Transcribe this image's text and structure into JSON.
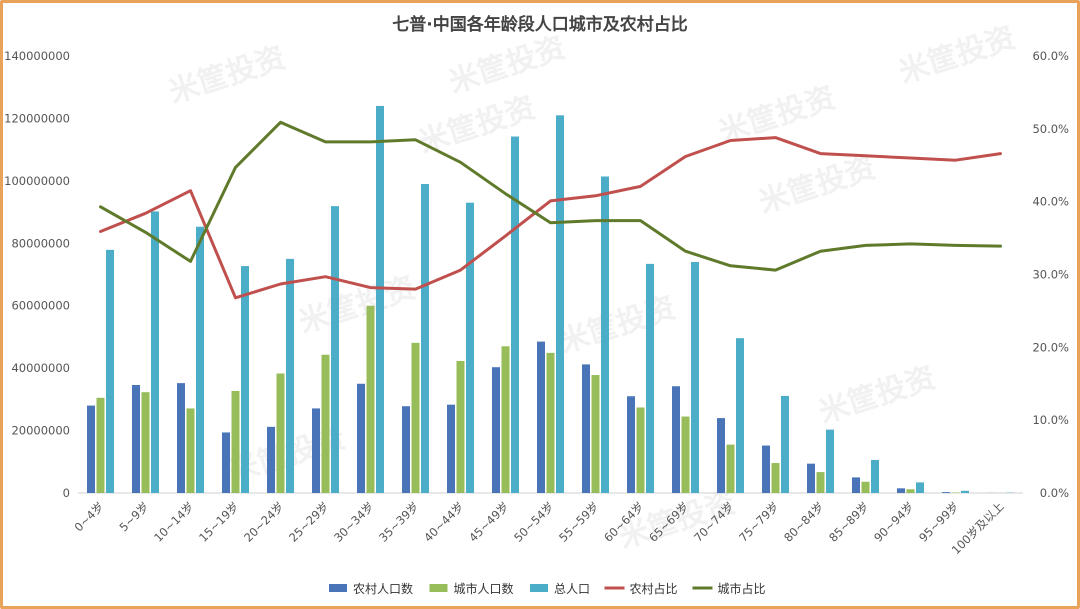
{
  "chart_data": {
    "type": "bar",
    "title": "七普·中国各年龄段人口城市及农村占比",
    "categories": [
      "0~4岁",
      "5~9岁",
      "10~14岁",
      "15~19岁",
      "20~24岁",
      "25~29岁",
      "30~34岁",
      "35~39岁",
      "40~44岁",
      "45~49岁",
      "50~54岁",
      "55~59岁",
      "60~64岁",
      "65~69岁",
      "70~74岁",
      "75~79岁",
      "80~84岁",
      "85~89岁",
      "90~94岁",
      "95~99岁",
      "100岁及以上"
    ],
    "y_left": {
      "min": 0,
      "max": 140000000,
      "ticks": [
        "0",
        "20000000",
        "40000000",
        "60000000",
        "80000000",
        "100000000",
        "120000000",
        "140000000"
      ]
    },
    "y_right": {
      "min": 0,
      "max": 0.6,
      "ticks": [
        "0.0%",
        "10.0%",
        "20.0%",
        "30.0%",
        "40.0%",
        "50.0%",
        "60.0%"
      ]
    },
    "series": [
      {
        "name": "农村人口数",
        "kind": "bar",
        "axis": "left",
        "color": "#4a74b8",
        "values": [
          28000000,
          34600000,
          35200000,
          19400000,
          21200000,
          27100000,
          35000000,
          27800000,
          28300000,
          40300000,
          48500000,
          41200000,
          31000000,
          34200000,
          24000000,
          15200000,
          9400000,
          5000000,
          1500000,
          300000,
          30000
        ]
      },
      {
        "name": "城市人口数",
        "kind": "bar",
        "axis": "left",
        "color": "#97bd5a",
        "values": [
          30500000,
          32300000,
          27100000,
          32700000,
          38300000,
          44300000,
          60000000,
          48100000,
          42300000,
          47000000,
          44900000,
          37800000,
          27400000,
          24500000,
          15500000,
          9600000,
          6700000,
          3600000,
          1200000,
          150000,
          20000
        ]
      },
      {
        "name": "总人口",
        "kind": "bar",
        "axis": "left",
        "color": "#4badc7",
        "values": [
          77900000,
          90200000,
          85300000,
          72700000,
          75000000,
          91900000,
          124000000,
          99000000,
          93000000,
          114200000,
          121000000,
          101400000,
          73400000,
          74000000,
          49600000,
          31100000,
          20300000,
          10600000,
          3400000,
          700000,
          100000
        ]
      },
      {
        "name": "农村占比",
        "kind": "line",
        "axis": "right",
        "color": "#c0504d",
        "values": [
          0.359,
          0.384,
          0.415,
          0.268,
          0.287,
          0.297,
          0.282,
          0.28,
          0.306,
          0.353,
          0.401,
          0.408,
          0.421,
          0.462,
          0.484,
          0.488,
          0.466,
          0.463,
          0.46,
          0.457,
          0.466
        ]
      },
      {
        "name": "城市占比",
        "kind": "line",
        "axis": "right",
        "color": "#5f7a2b",
        "values": [
          0.393,
          0.358,
          0.318,
          0.447,
          0.509,
          0.482,
          0.482,
          0.485,
          0.454,
          0.411,
          0.371,
          0.374,
          0.374,
          0.332,
          0.312,
          0.306,
          0.332,
          0.34,
          0.342,
          0.34,
          0.339
        ]
      }
    ],
    "legend_position": "bottom",
    "grid": false
  },
  "watermark": {
    "text": "米筐投资",
    "positions_in_plot": []
  }
}
